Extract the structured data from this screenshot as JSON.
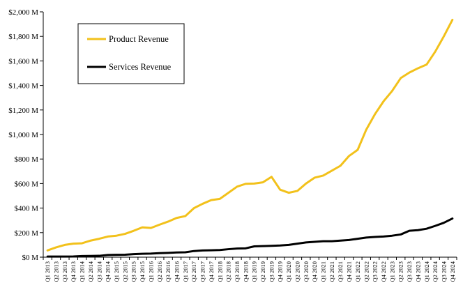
{
  "chart_data": {
    "type": "line",
    "title": "",
    "xlabel": "",
    "ylabel": "",
    "ylim": [
      0,
      2000
    ],
    "y_tick_step": 200,
    "y_tick_format": "$%s M",
    "grid": false,
    "legend_placement": "top-left",
    "categories": [
      "Q1 2013",
      "Q2 2013",
      "Q3 2013",
      "Q4 2013",
      "Q1 2014",
      "Q2 2014",
      "Q3 2014",
      "Q4 2014",
      "Q1 2015",
      "Q2 2015",
      "Q3 2015",
      "Q4 2015",
      "Q1 2016",
      "Q2 2016",
      "Q3 2016",
      "Q4 2016",
      "Q1 2017",
      "Q2 2017",
      "Q3 2017",
      "Q4 2017",
      "Q1 2018",
      "Q2 2018",
      "Q3 2018",
      "Q4 2018",
      "Q1 2019",
      "Q2 2019",
      "Q3 2019",
      "Q4 2019",
      "Q1 2020",
      "Q2 2020",
      "Q3 2020",
      "Q4 2020",
      "Q1 2021",
      "Q2 2021",
      "Q3 2021",
      "Q4 2021",
      "Q1 2022",
      "Q2 2022",
      "Q3 2022",
      "Q4 2022",
      "Q1 2023",
      "Q2 2023",
      "Q3 2023",
      "Q4 2023",
      "Q1 2024",
      "Q2 2024",
      "Q3 2024",
      "Q4 2024"
    ],
    "series": [
      {
        "name": "Product Revenue",
        "color": "#F2C11B",
        "values": [
          55,
          80,
          100,
          110,
          113,
          135,
          150,
          168,
          175,
          190,
          215,
          243,
          238,
          265,
          290,
          320,
          335,
          400,
          435,
          465,
          475,
          525,
          575,
          598,
          600,
          610,
          655,
          550,
          525,
          540,
          600,
          648,
          665,
          705,
          745,
          825,
          875,
          1040,
          1165,
          1270,
          1355,
          1460,
          1505,
          1540,
          1570,
          1675,
          1800,
          1935
        ]
      },
      {
        "name": "Services Revenue",
        "color": "#000000",
        "values": [
          5,
          5,
          5,
          6,
          9,
          10,
          11,
          18,
          19,
          20,
          25,
          28,
          29,
          33,
          35,
          38,
          40,
          50,
          55,
          56,
          58,
          65,
          70,
          72,
          88,
          90,
          92,
          95,
          100,
          110,
          120,
          125,
          130,
          130,
          135,
          140,
          150,
          160,
          165,
          168,
          175,
          185,
          215,
          220,
          232,
          255,
          280,
          315
        ]
      }
    ]
  }
}
